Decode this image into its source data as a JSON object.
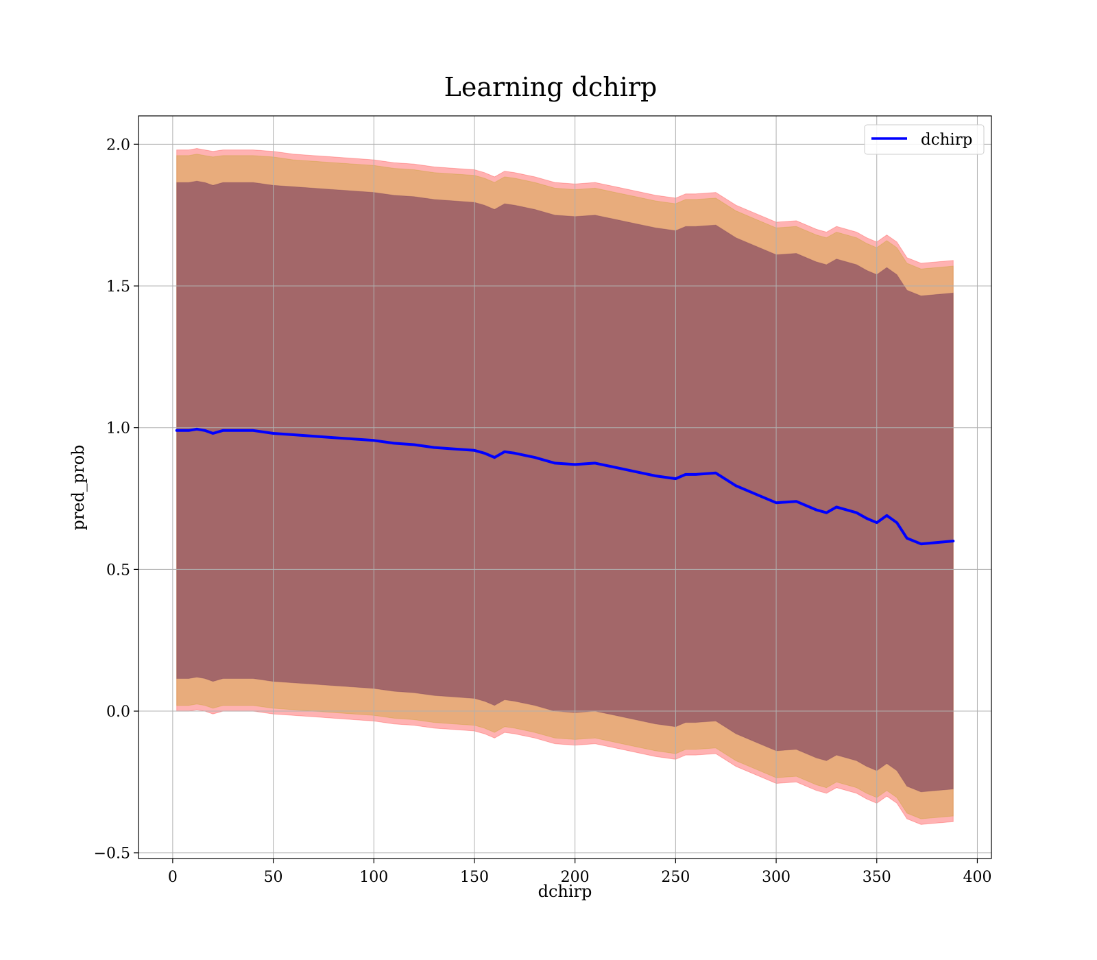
{
  "chart_data": {
    "type": "line",
    "title": "Learning dchirp",
    "xlabel": "dchirp",
    "ylabel": "pred_prob",
    "xlim": [
      -17,
      407
    ],
    "ylim": [
      -0.52,
      2.1
    ],
    "xticks": [
      0,
      50,
      100,
      150,
      200,
      250,
      300,
      350,
      400
    ],
    "yticks": [
      -0.5,
      0.0,
      0.5,
      1.0,
      1.5,
      2.0
    ],
    "xtick_labels": [
      "0",
      "50",
      "100",
      "150",
      "200",
      "250",
      "300",
      "350",
      "400"
    ],
    "ytick_labels": [
      "−0.5",
      "0.0",
      "0.5",
      "1.0",
      "1.5",
      "2.0"
    ],
    "grid": true,
    "legend": {
      "position": "top-right",
      "entries": [
        "dchirp"
      ]
    },
    "series": [
      {
        "name": "dchirp",
        "color": "#0000ff",
        "x": [
          2,
          8,
          12,
          16,
          20,
          25,
          30,
          40,
          50,
          60,
          70,
          80,
          90,
          100,
          110,
          120,
          130,
          140,
          150,
          155,
          160,
          165,
          170,
          180,
          190,
          200,
          210,
          220,
          230,
          240,
          250,
          255,
          260,
          270,
          280,
          290,
          300,
          310,
          320,
          325,
          330,
          340,
          345,
          350,
          355,
          360,
          365,
          372,
          380,
          388
        ],
        "values": [
          0.99,
          0.99,
          0.995,
          0.99,
          0.98,
          0.99,
          0.99,
          0.99,
          0.98,
          0.975,
          0.97,
          0.965,
          0.96,
          0.955,
          0.945,
          0.94,
          0.93,
          0.925,
          0.92,
          0.91,
          0.895,
          0.915,
          0.91,
          0.895,
          0.875,
          0.87,
          0.875,
          0.86,
          0.845,
          0.83,
          0.82,
          0.835,
          0.835,
          0.84,
          0.795,
          0.765,
          0.735,
          0.74,
          0.71,
          0.7,
          0.72,
          0.7,
          0.68,
          0.665,
          0.69,
          0.665,
          0.61,
          0.59,
          0.595,
          0.6
        ]
      }
    ],
    "bands": [
      {
        "color": "#ff0000",
        "opacity": 0.3,
        "x": [
          2,
          8,
          12,
          16,
          20,
          25,
          30,
          40,
          50,
          60,
          70,
          80,
          90,
          100,
          110,
          120,
          130,
          140,
          150,
          155,
          160,
          165,
          170,
          180,
          190,
          200,
          210,
          220,
          230,
          240,
          250,
          255,
          260,
          270,
          280,
          290,
          300,
          310,
          320,
          325,
          330,
          340,
          345,
          350,
          355,
          360,
          365,
          372,
          380,
          388
        ],
        "upper": [
          1.98,
          1.98,
          1.985,
          1.98,
          1.975,
          1.98,
          1.98,
          1.98,
          1.975,
          1.965,
          1.96,
          1.955,
          1.95,
          1.945,
          1.935,
          1.93,
          1.92,
          1.915,
          1.91,
          1.9,
          1.885,
          1.905,
          1.9,
          1.885,
          1.865,
          1.86,
          1.865,
          1.85,
          1.835,
          1.82,
          1.81,
          1.825,
          1.825,
          1.83,
          1.785,
          1.755,
          1.725,
          1.73,
          1.7,
          1.69,
          1.71,
          1.69,
          1.67,
          1.655,
          1.68,
          1.655,
          1.6,
          1.58,
          1.585,
          1.59
        ],
        "lower": [
          0.0,
          0.0,
          0.005,
          0.0,
          -0.01,
          0.0,
          0.0,
          0.0,
          -0.01,
          -0.015,
          -0.02,
          -0.025,
          -0.03,
          -0.035,
          -0.045,
          -0.05,
          -0.06,
          -0.065,
          -0.07,
          -0.08,
          -0.095,
          -0.075,
          -0.08,
          -0.095,
          -0.115,
          -0.12,
          -0.115,
          -0.13,
          -0.145,
          -0.16,
          -0.17,
          -0.155,
          -0.155,
          -0.15,
          -0.195,
          -0.225,
          -0.255,
          -0.25,
          -0.28,
          -0.29,
          -0.27,
          -0.29,
          -0.31,
          -0.325,
          -0.3,
          -0.325,
          -0.38,
          -0.4,
          -0.395,
          -0.39
        ]
      },
      {
        "color": "#b4a000",
        "opacity": 0.3,
        "x": [
          2,
          8,
          12,
          16,
          20,
          25,
          30,
          40,
          50,
          60,
          70,
          80,
          90,
          100,
          110,
          120,
          130,
          140,
          150,
          155,
          160,
          165,
          170,
          180,
          190,
          200,
          210,
          220,
          230,
          240,
          250,
          255,
          260,
          270,
          280,
          290,
          300,
          310,
          320,
          325,
          330,
          340,
          345,
          350,
          355,
          360,
          365,
          372,
          380,
          388
        ],
        "upper": [
          1.96,
          1.96,
          1.965,
          1.96,
          1.955,
          1.96,
          1.96,
          1.96,
          1.955,
          1.945,
          1.94,
          1.935,
          1.93,
          1.925,
          1.915,
          1.91,
          1.9,
          1.895,
          1.89,
          1.88,
          1.865,
          1.885,
          1.88,
          1.865,
          1.845,
          1.84,
          1.845,
          1.83,
          1.815,
          1.8,
          1.79,
          1.805,
          1.805,
          1.81,
          1.765,
          1.735,
          1.705,
          1.71,
          1.68,
          1.67,
          1.69,
          1.67,
          1.65,
          1.635,
          1.66,
          1.635,
          1.58,
          1.56,
          1.565,
          1.57
        ],
        "lower": [
          0.02,
          0.02,
          0.025,
          0.02,
          0.01,
          0.02,
          0.02,
          0.02,
          0.01,
          0.005,
          0.0,
          -0.005,
          -0.01,
          -0.015,
          -0.025,
          -0.03,
          -0.04,
          -0.045,
          -0.05,
          -0.06,
          -0.075,
          -0.055,
          -0.06,
          -0.075,
          -0.095,
          -0.1,
          -0.095,
          -0.11,
          -0.125,
          -0.14,
          -0.15,
          -0.135,
          -0.135,
          -0.13,
          -0.175,
          -0.205,
          -0.235,
          -0.23,
          -0.26,
          -0.27,
          -0.25,
          -0.27,
          -0.29,
          -0.305,
          -0.28,
          -0.305,
          -0.36,
          -0.38,
          -0.375,
          -0.37
        ]
      },
      {
        "color": "#6a2f5a",
        "opacity": 0.55,
        "x": [
          2,
          8,
          12,
          16,
          20,
          25,
          30,
          40,
          50,
          60,
          70,
          80,
          90,
          100,
          110,
          120,
          130,
          140,
          150,
          155,
          160,
          165,
          170,
          180,
          190,
          200,
          210,
          220,
          230,
          240,
          250,
          255,
          260,
          270,
          280,
          290,
          300,
          310,
          320,
          325,
          330,
          340,
          345,
          350,
          355,
          360,
          365,
          372,
          380,
          388
        ],
        "upper": [
          1.865,
          1.865,
          1.87,
          1.865,
          1.855,
          1.865,
          1.865,
          1.865,
          1.855,
          1.85,
          1.845,
          1.84,
          1.835,
          1.83,
          1.82,
          1.815,
          1.805,
          1.8,
          1.795,
          1.785,
          1.77,
          1.79,
          1.785,
          1.77,
          1.75,
          1.745,
          1.75,
          1.735,
          1.72,
          1.705,
          1.695,
          1.71,
          1.71,
          1.715,
          1.67,
          1.64,
          1.61,
          1.615,
          1.585,
          1.575,
          1.595,
          1.575,
          1.555,
          1.54,
          1.565,
          1.54,
          1.485,
          1.465,
          1.47,
          1.475
        ],
        "lower": [
          0.115,
          0.115,
          0.12,
          0.115,
          0.105,
          0.115,
          0.115,
          0.115,
          0.105,
          0.1,
          0.095,
          0.09,
          0.085,
          0.08,
          0.07,
          0.065,
          0.055,
          0.05,
          0.045,
          0.035,
          0.02,
          0.04,
          0.035,
          0.02,
          0.0,
          -0.005,
          0.0,
          -0.015,
          -0.03,
          -0.045,
          -0.055,
          -0.04,
          -0.04,
          -0.035,
          -0.08,
          -0.11,
          -0.14,
          -0.135,
          -0.165,
          -0.175,
          -0.155,
          -0.175,
          -0.195,
          -0.21,
          -0.185,
          -0.21,
          -0.265,
          -0.285,
          -0.28,
          -0.275
        ]
      }
    ]
  }
}
